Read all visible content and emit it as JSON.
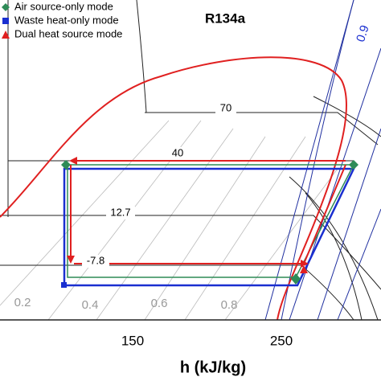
{
  "title": "R134a",
  "legend": [
    "Air source-only mode",
    "Waste heat-only mode",
    "Dual heat source mode"
  ],
  "isotherm_labels": [
    "70",
    "40",
    "12.7",
    "-7.8"
  ],
  "quality_labels": [
    "0.2",
    "0.4",
    "0.6",
    "0.8",
    "0.9"
  ],
  "x_axis": {
    "ticks": [
      "150",
      "250"
    ],
    "label": "h (kJ/kg)"
  }
}
